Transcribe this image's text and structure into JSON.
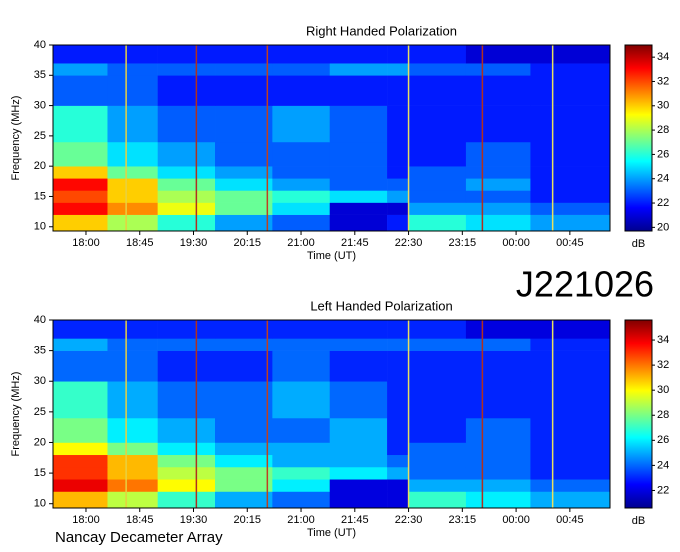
{
  "observation_id": "J221026",
  "instrument": "Nancay Decameter Array",
  "chart_data": [
    {
      "type": "heatmap",
      "title": "Right Handed Polarization",
      "x_label": "Time (UT)",
      "y_label": "Frequency (MHz)",
      "colorbar_label": "dB",
      "xlim": [
        17.54,
        25.31
      ],
      "ylim": [
        9.3,
        40
      ],
      "zlim": [
        19.7,
        35
      ],
      "xticks": [
        {
          "value": 18,
          "label": "18:00"
        },
        {
          "value": 18.75,
          "label": "18:45"
        },
        {
          "value": 19.5,
          "label": "19:30"
        },
        {
          "value": 20.25,
          "label": "20:15"
        },
        {
          "value": 21,
          "label": "21:00"
        },
        {
          "value": 21.75,
          "label": "21:45"
        },
        {
          "value": 22.5,
          "label": "22:30"
        },
        {
          "value": 23.25,
          "label": "23:15"
        },
        {
          "value": 24,
          "label": "00:00"
        },
        {
          "value": 24.75,
          "label": "00:45"
        }
      ],
      "yticks": [
        10,
        15,
        20,
        25,
        30,
        35,
        40
      ],
      "zticks": [
        20,
        22,
        24,
        26,
        28,
        30,
        32,
        34
      ],
      "xbins": [
        17.54,
        18.3,
        19.0,
        19.8,
        20.6,
        21.4,
        22.2,
        22.5,
        23.3,
        24.2,
        25.31
      ],
      "ybins": [
        9.3,
        12,
        14,
        16,
        18,
        20,
        24,
        30,
        35,
        37,
        40
      ],
      "z": [
        [
          30,
          28,
          26,
          24,
          23,
          21,
          22,
          26,
          25,
          24
        ],
        [
          33,
          31,
          29,
          27,
          25,
          21,
          21,
          24,
          24,
          23
        ],
        [
          32,
          30,
          28,
          27,
          26,
          25,
          24,
          23,
          23,
          22
        ],
        [
          33,
          30,
          27,
          25,
          24,
          23,
          23,
          23,
          24,
          22
        ],
        [
          30,
          27,
          25,
          24,
          23,
          23,
          22,
          23,
          23,
          22
        ],
        [
          27,
          25,
          24,
          23,
          23,
          23,
          22,
          22,
          23,
          22
        ],
        [
          26,
          24,
          23,
          23,
          24,
          23,
          22,
          22,
          22,
          22
        ],
        [
          23,
          23,
          22,
          22,
          22,
          22,
          22,
          22,
          22,
          22
        ],
        [
          24,
          23,
          23,
          23,
          23,
          24,
          24,
          23,
          23,
          22
        ],
        [
          22,
          22,
          22,
          22,
          22,
          22,
          22,
          22,
          21,
          21
        ]
      ],
      "vertical_lines": [
        {
          "x": 18.56,
          "color": "#e8d040"
        },
        {
          "x": 19.54,
          "color": "#b03020"
        },
        {
          "x": 20.53,
          "color": "#c04020"
        },
        {
          "x": 22.5,
          "color": "#e8e060"
        },
        {
          "x": 23.53,
          "color": "#b03020"
        },
        {
          "x": 24.51,
          "color": "#e8e060"
        }
      ]
    },
    {
      "type": "heatmap",
      "title": "Left Handed Polarization",
      "x_label": "Time (UT)",
      "y_label": "Frequency (MHz)",
      "colorbar_label": "dB",
      "xlim": [
        17.54,
        25.31
      ],
      "ylim": [
        9.3,
        40
      ],
      "zlim": [
        20.6,
        35.6
      ],
      "xticks": [
        {
          "value": 18,
          "label": "18:00"
        },
        {
          "value": 18.75,
          "label": "18:45"
        },
        {
          "value": 19.5,
          "label": "19:30"
        },
        {
          "value": 20.25,
          "label": "20:15"
        },
        {
          "value": 21,
          "label": "21:00"
        },
        {
          "value": 21.75,
          "label": "21:45"
        },
        {
          "value": 22.5,
          "label": "22:30"
        },
        {
          "value": 23.25,
          "label": "23:15"
        },
        {
          "value": 24,
          "label": "00:00"
        },
        {
          "value": 24.75,
          "label": "00:45"
        }
      ],
      "yticks": [
        10,
        15,
        20,
        25,
        30,
        35,
        40
      ],
      "zticks": [
        22,
        24,
        26,
        28,
        30,
        32,
        34
      ],
      "xbins": [
        17.54,
        18.3,
        19.0,
        19.8,
        20.6,
        21.4,
        22.2,
        22.5,
        23.3,
        24.2,
        25.31
      ],
      "ybins": [
        9.3,
        12,
        14,
        16,
        18,
        20,
        24,
        30,
        35,
        37,
        40
      ],
      "z": [
        [
          31,
          29,
          27,
          25,
          24,
          22,
          22,
          27,
          26,
          25
        ],
        [
          34,
          32,
          30,
          28,
          26,
          22,
          22,
          25,
          25,
          24
        ],
        [
          33,
          31,
          29,
          28,
          27,
          26,
          25,
          24,
          24,
          23
        ],
        [
          33,
          31,
          28,
          26,
          25,
          25,
          24,
          24,
          24,
          23
        ],
        [
          30,
          28,
          26,
          25,
          25,
          25,
          23,
          24,
          24,
          23
        ],
        [
          28,
          26,
          25,
          24,
          24,
          25,
          23,
          23,
          24,
          23
        ],
        [
          27,
          25,
          24,
          24,
          25,
          24,
          23,
          23,
          23,
          23
        ],
        [
          24,
          24,
          23,
          23,
          24,
          23,
          23,
          23,
          23,
          23
        ],
        [
          25,
          24,
          24,
          24,
          24,
          24,
          24,
          24,
          24,
          23
        ],
        [
          23,
          23,
          23,
          23,
          23,
          23,
          23,
          23,
          22,
          22
        ]
      ],
      "vertical_lines": [
        {
          "x": 18.56,
          "color": "#e8d040"
        },
        {
          "x": 19.54,
          "color": "#b03020"
        },
        {
          "x": 20.53,
          "color": "#c04020"
        },
        {
          "x": 22.5,
          "color": "#e8e060"
        },
        {
          "x": 23.53,
          "color": "#b03020"
        },
        {
          "x": 24.51,
          "color": "#e8e060"
        }
      ]
    }
  ]
}
